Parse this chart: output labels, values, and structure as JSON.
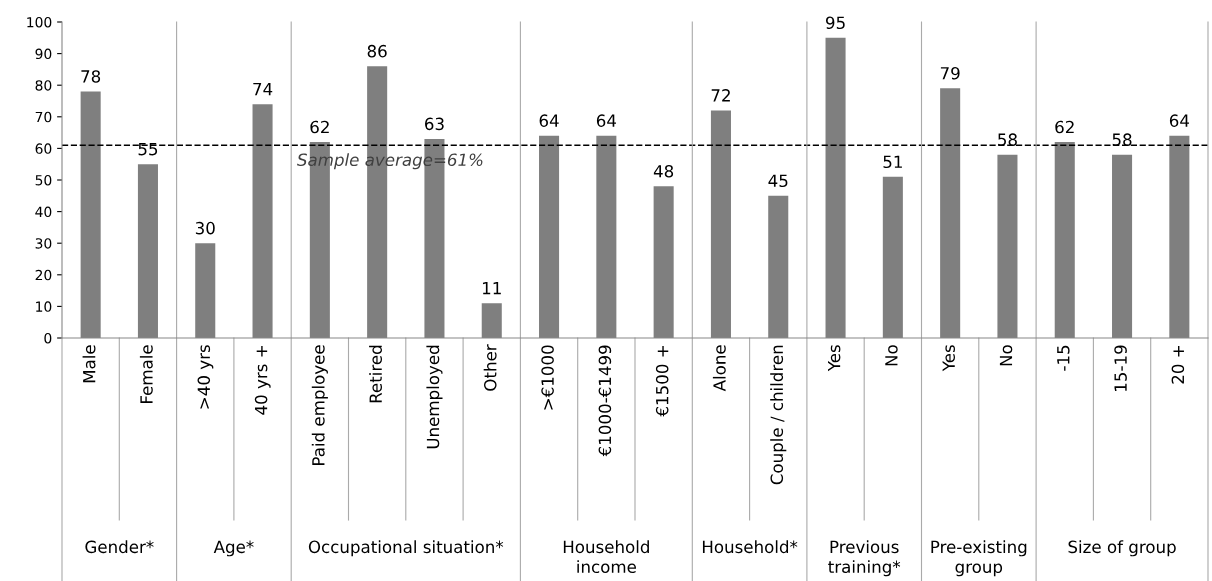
{
  "chart_data": {
    "type": "bar",
    "categories": [
      "Male",
      "Female",
      ">40 yrs",
      "40 yrs +",
      "Paid employee",
      "Retired",
      "Unemployed",
      "Other",
      ">€1000",
      "€1000-€1499",
      "€1500 +",
      "Alone",
      "Couple / children",
      "Yes",
      "No",
      "Yes",
      "No",
      "-15",
      "15-19",
      "20 +"
    ],
    "values": [
      78,
      55,
      30,
      74,
      62,
      86,
      63,
      11,
      64,
      64,
      48,
      72,
      45,
      95,
      51,
      79,
      58,
      62,
      58,
      64
    ],
    "color": "#7f7f7f",
    "data_labels": true,
    "ylim": [
      0,
      100
    ],
    "yticks": [
      0,
      10,
      20,
      30,
      40,
      50,
      60,
      70,
      80,
      90,
      100
    ],
    "grid": false,
    "legend": false,
    "ref_lines": [
      {
        "axis": "y",
        "value": 61,
        "label": "Sample average=61%",
        "color": "#000000",
        "line_style": "dashed"
      }
    ],
    "annotations": [
      "Gender*",
      "Age*",
      "Occupational situation*",
      "Household\nincome",
      "Household*",
      "Previous\ntraining*",
      "Pre-existing\ngroup",
      "Size of group"
    ]
  }
}
